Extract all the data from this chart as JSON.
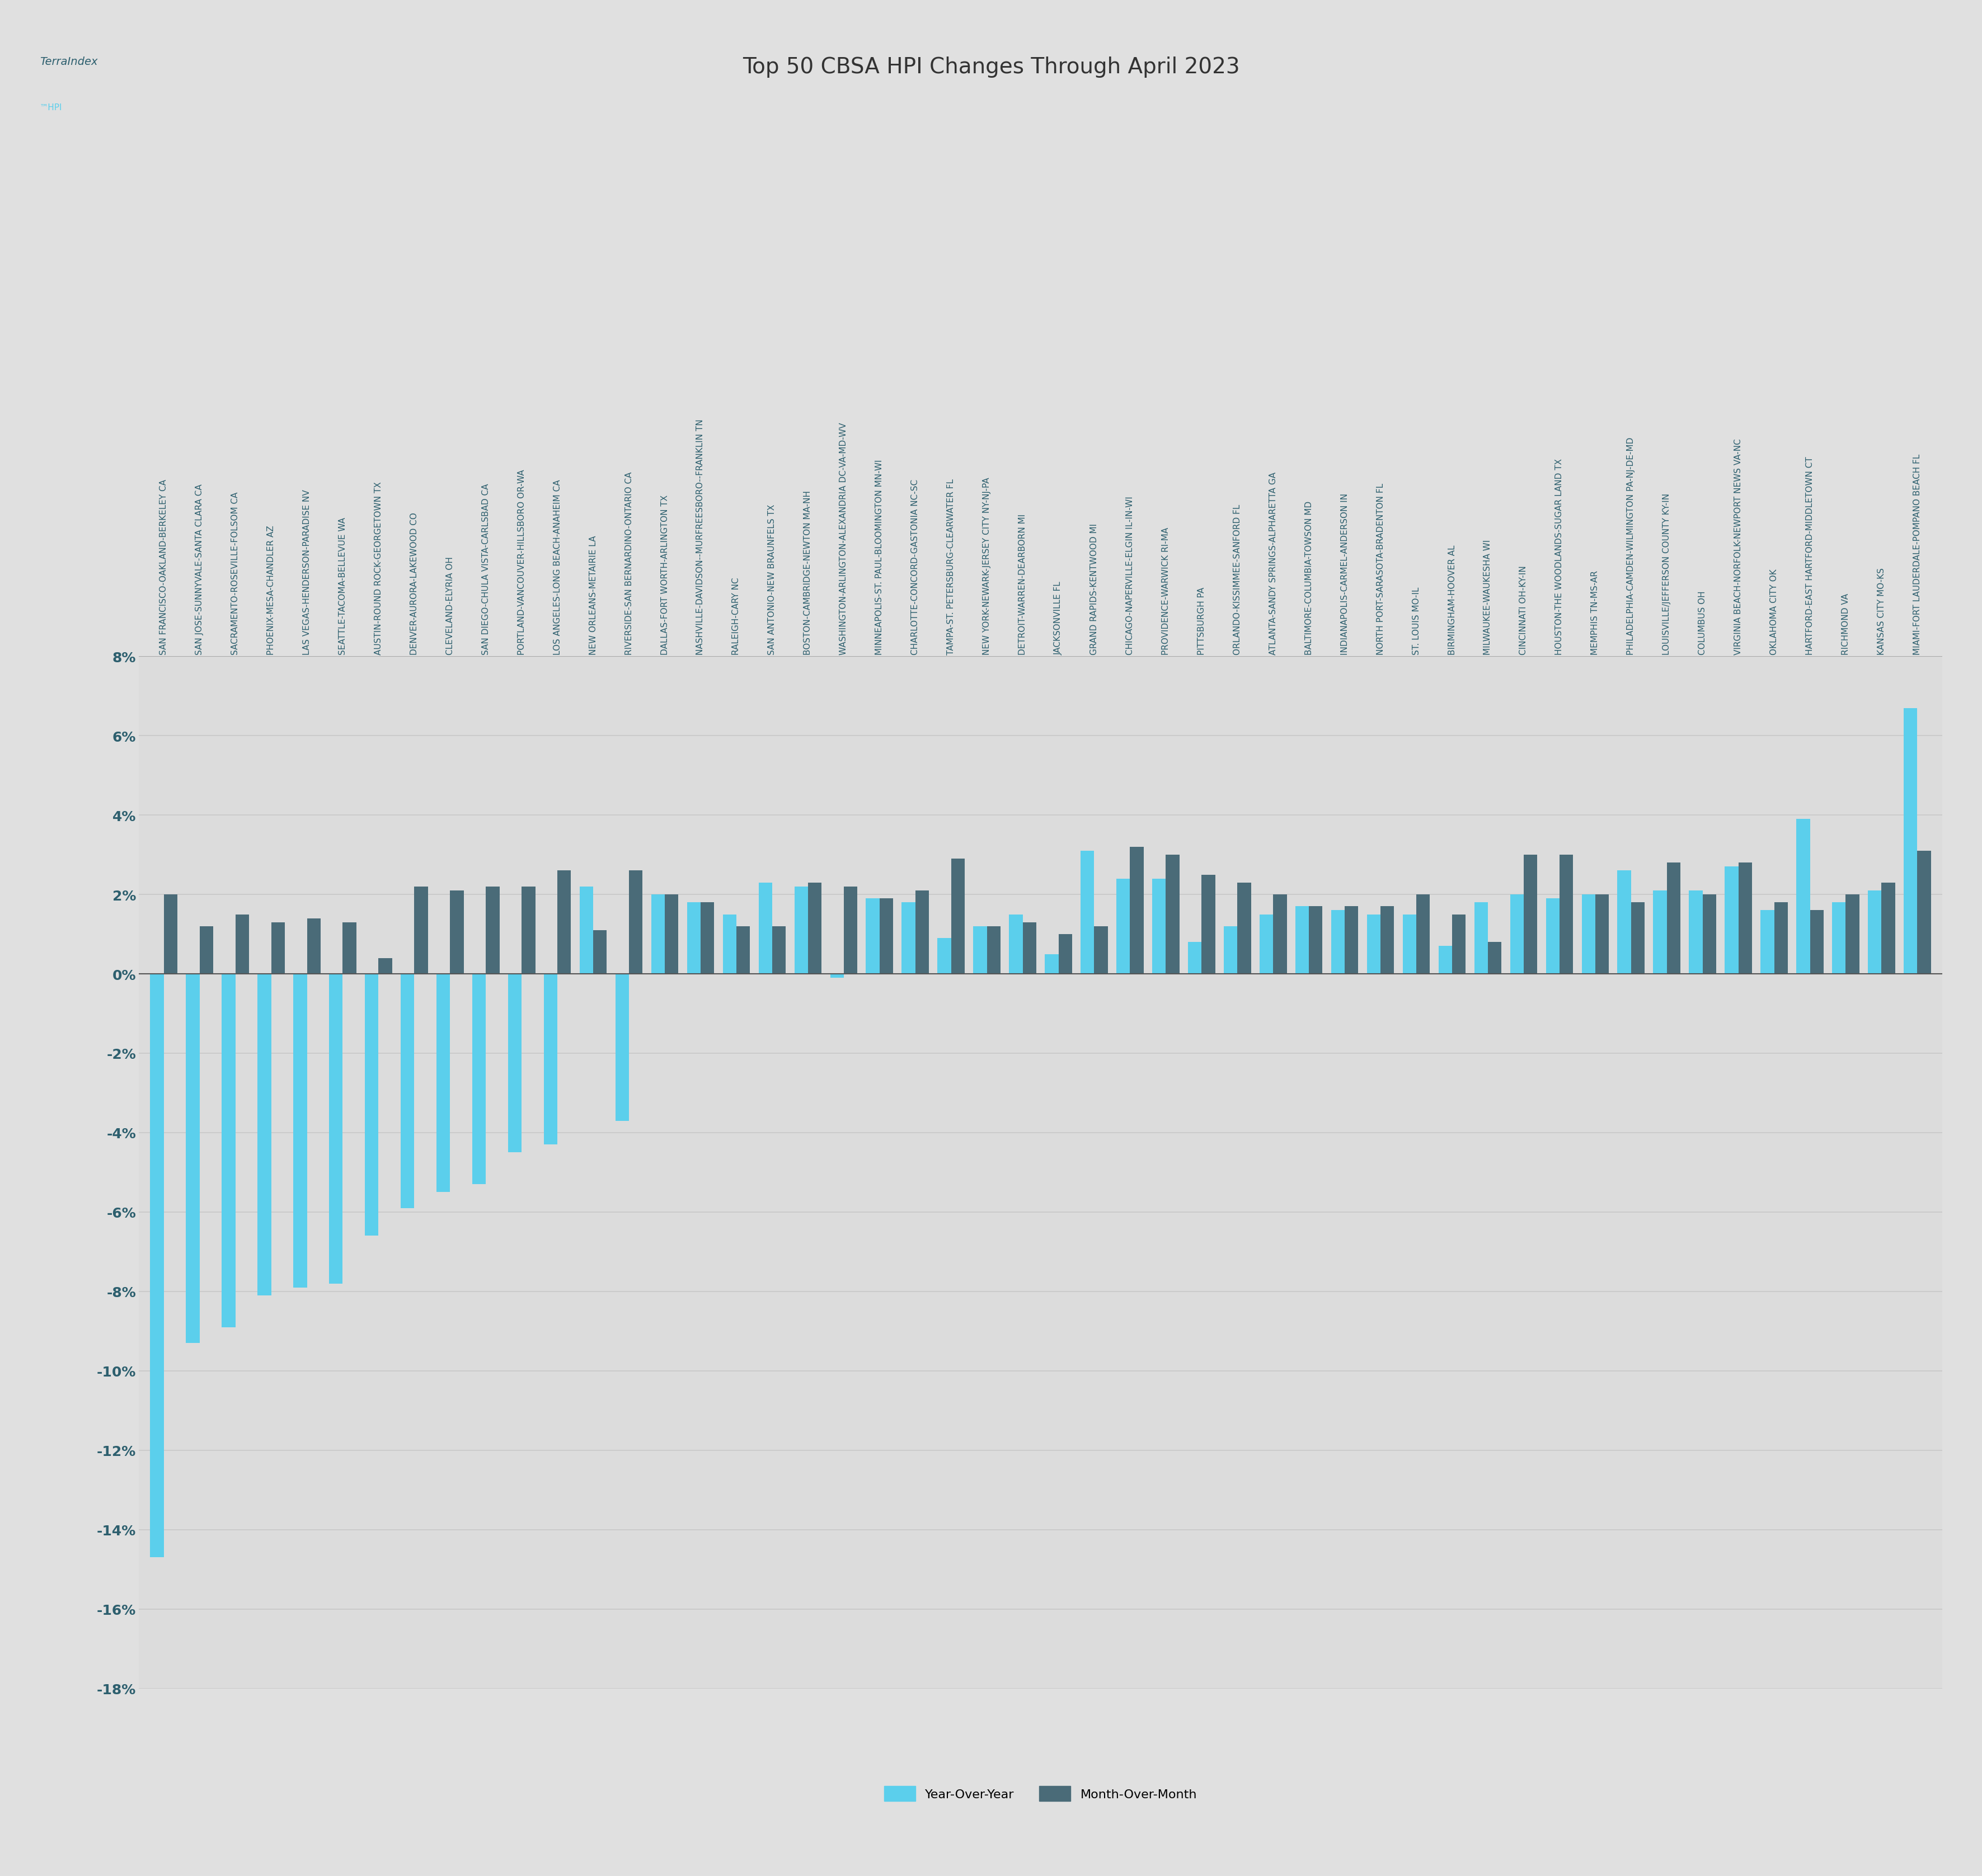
{
  "title": "Top 50 CBSA HPI Changes Through April 2023",
  "background_color": "#e0e0e0",
  "plot_bg_color": "#dcdcdc",
  "yoy_color": "#5BCFEC",
  "mom_color": "#4a6b78",
  "categories": [
    "SAN FRANCISCO-OAKLAND-BERKELEY CA",
    "SAN JOSE-SUNNYVALE-SANTA CLARA CA",
    "SACRAMENTO-ROSEVILLE-FOLSOM CA",
    "PHOENIX-MESA-CHANDLER AZ",
    "LAS VEGAS-HENDERSON-PARADISE NV",
    "SEATTLE-TACOMA-BELLEVUE WA",
    "AUSTIN-ROUND ROCK-GEORGETOWN TX",
    "DENVER-AURORA-LAKEWOOD CO",
    "CLEVELAND-ELYRIA OH",
    "SAN DIEGO-CHULA VISTA-CARLSBAD CA",
    "PORTLAND-VANCOUVER-HILLSBORO OR-WA",
    "LOS ANGELES-LONG BEACH-ANAHEIM CA",
    "NEW ORLEANS-METAIRIE LA",
    "RIVERSIDE-SAN BERNARDINO-ONTARIO CA",
    "DALLAS-FORT WORTH-ARLINGTON TX",
    "NASHVILLE-DAVIDSON--MURFREESBORO--FRANKLIN TN",
    "RALEIGH-CARY NC",
    "SAN ANTONIO-NEW BRAUNFELS TX",
    "BOSTON-CAMBRIDGE-NEWTON MA-NH",
    "WASHINGTON-ARLINGTON-ALEXANDRIA DC-VA-MD-WV",
    "MINNEAPOLIS-ST. PAUL-BLOOMINGTON MN-WI",
    "CHARLOTTE-CONCORD-GASTONIA NC-SC",
    "TAMPA-ST. PETERSBURG-CLEARWATER FL",
    "NEW YORK-NEWARK-JERSEY CITY NY-NJ-PA",
    "DETROIT-WARREN-DEARBORN MI",
    "JACKSONVILLE FL",
    "GRAND RAPIDS-KENTWOOD MI",
    "CHICAGO-NAPERVILLE-ELGIN IL-IN-WI",
    "PROVIDENCE-WARWICK RI-MA",
    "PITTSBURGH PA",
    "ORLANDO-KISSIMMEE-SANFORD FL",
    "ATLANTA-SANDY SPRINGS-ALPHARETTA GA",
    "BALTIMORE-COLUMBIA-TOWSON MD",
    "INDIANAPOLIS-CARMEL-ANDERSON IN",
    "NORTH PORT-SARASOTA-BRADENTON FL",
    "ST. LOUIS MO-IL",
    "BIRMINGHAM-HOOVER AL",
    "MILWAUKEE-WAUKESHA WI",
    "CINCINNATI OH-KY-IN",
    "HOUSTON-THE WOODLANDS-SUGAR LAND TX",
    "MEMPHIS TN-MS-AR",
    "PHILADELPHIA-CAMDEN-WILMINGTON PA-NJ-DE-MD",
    "LOUISVILLE/JEFFERSON COUNTY KY-IN",
    "COLUMBUS OH",
    "VIRGINIA BEACH-NORFOLK-NEWPORT NEWS VA-NC",
    "OKLAHOMA CITY OK",
    "HARTFORD-EAST HARTFORD-MIDDLETOWN CT",
    "RICHMOND VA",
    "KANSAS CITY MO-KS",
    "MIAMI-FORT LAUDERDALE-POMPANO BEACH FL"
  ],
  "yoy_values": [
    -14.7,
    -9.3,
    -8.9,
    -8.1,
    -7.9,
    -7.8,
    -6.6,
    -5.9,
    -5.5,
    -5.3,
    -4.5,
    -4.3,
    2.2,
    -3.7,
    2.0,
    1.8,
    1.5,
    2.3,
    2.2,
    -0.1,
    1.9,
    1.8,
    0.9,
    1.2,
    1.5,
    0.5,
    3.1,
    2.4,
    2.4,
    0.8,
    1.2,
    1.5,
    1.7,
    1.6,
    1.5,
    1.5,
    0.7,
    1.8,
    2.0,
    1.9,
    2.0,
    2.6,
    2.1,
    2.1,
    2.7,
    1.6,
    3.9,
    1.8,
    2.1,
    6.7
  ],
  "mom_values": [
    2.0,
    1.2,
    1.5,
    1.3,
    1.4,
    1.3,
    0.4,
    2.2,
    2.1,
    2.2,
    2.2,
    2.6,
    1.1,
    2.6,
    2.0,
    1.8,
    1.2,
    1.2,
    2.3,
    2.2,
    1.9,
    2.1,
    2.9,
    1.2,
    1.3,
    1.0,
    1.2,
    3.2,
    3.0,
    2.5,
    2.3,
    2.0,
    1.7,
    1.7,
    1.7,
    2.0,
    1.5,
    0.8,
    3.0,
    3.0,
    2.0,
    1.8,
    2.8,
    2.0,
    2.8,
    1.8,
    1.6,
    2.0,
    2.3,
    3.1
  ],
  "ylim": [
    -18,
    8
  ],
  "yticks": [
    -18,
    -16,
    -14,
    -12,
    -10,
    -8,
    -6,
    -4,
    -2,
    0,
    2,
    4,
    6,
    8
  ],
  "label_color": "#2d5f6e",
  "grid_color": "#c8c8c8",
  "title_fontsize": 28,
  "tick_fontsize": 18,
  "label_fontsize": 11
}
